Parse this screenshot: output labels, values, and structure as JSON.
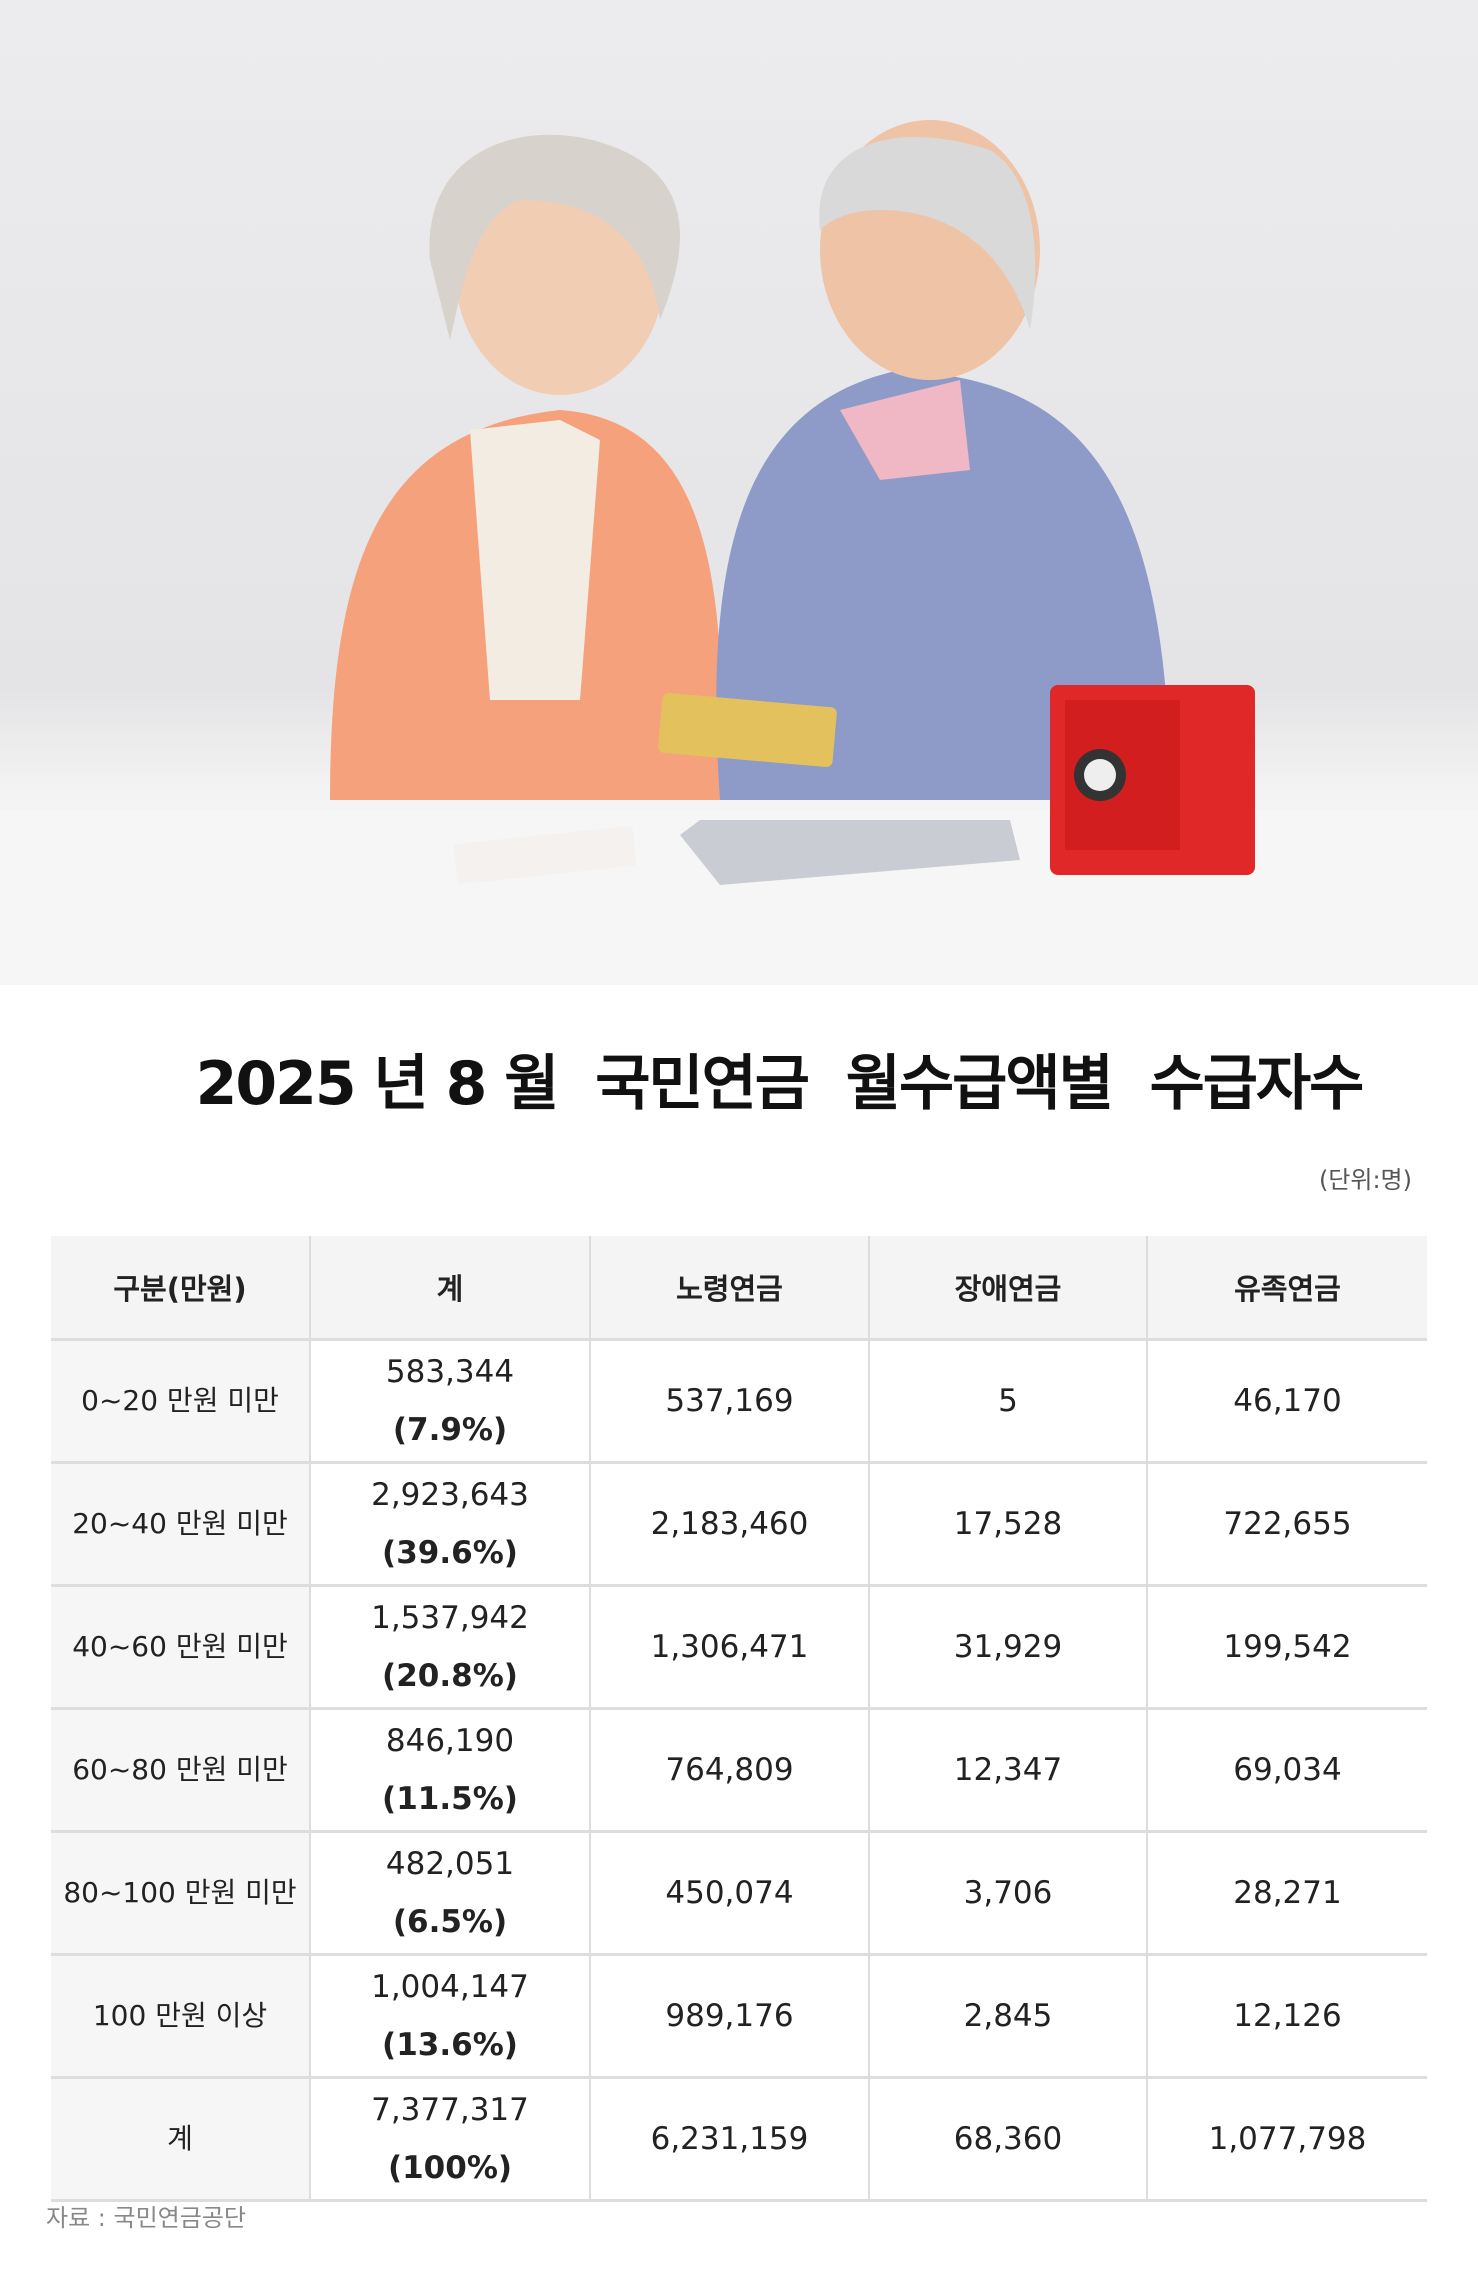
{
  "title": "2025 년 8 월  국민연금  월수급액별  수급자수",
  "unit": "(단위:명)",
  "table": {
    "headers": [
      "구분(만원)",
      "계",
      "노령연금",
      "장애연금",
      "유족연금"
    ],
    "rows": [
      {
        "category": "0~20 만원  미만",
        "total": "583,344",
        "share": "(7.9%)",
        "old_age": "537,169",
        "disability": "5",
        "survivor": "46,170"
      },
      {
        "category": "20~40 만원  미만",
        "total": "2,923,643",
        "share": "(39.6%)",
        "old_age": "2,183,460",
        "disability": "17,528",
        "survivor": "722,655"
      },
      {
        "category": "40~60 만원  미만",
        "total": "1,537,942",
        "share": "(20.8%)",
        "old_age": "1,306,471",
        "disability": "31,929",
        "survivor": "199,542"
      },
      {
        "category": "60~80 만원  미만",
        "total": "846,190",
        "share": "(11.5%)",
        "old_age": "764,809",
        "disability": "12,347",
        "survivor": "69,034"
      },
      {
        "category": "80~100 만원  미만",
        "total": "482,051",
        "share": "(6.5%)",
        "old_age": "450,074",
        "disability": "3,706",
        "survivor": "28,271"
      },
      {
        "category": "100 만원  이상",
        "total": "1,004,147",
        "share": "(13.6%)",
        "old_age": "989,176",
        "disability": "2,845",
        "survivor": "12,126"
      },
      {
        "category": "계",
        "total": "7,377,317",
        "share": "(100%)",
        "old_age": "6,231,159",
        "disability": "68,360",
        "survivor": "1,077,798"
      }
    ]
  },
  "source": "자료 : 국민연금공단"
}
